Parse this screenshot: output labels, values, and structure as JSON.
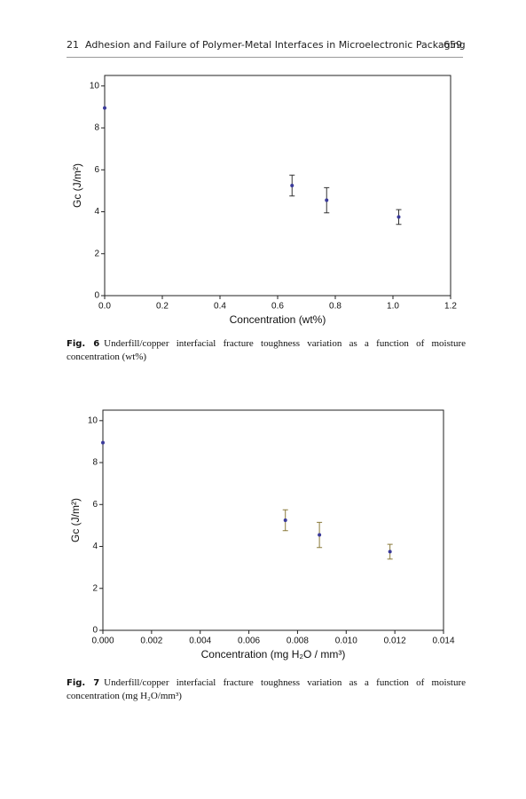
{
  "header": {
    "chapter": "21",
    "title": "Adhesion and Failure of Polymer-Metal Interfaces in Microelectronic Packaging",
    "page": "659"
  },
  "chart_data": [
    {
      "type": "scatter",
      "x_label": "Concentration (wt%)",
      "y_label": "Gc (J/m²)",
      "x": [
        0,
        0.65,
        0.77,
        1.02
      ],
      "values": [
        8.95,
        5.25,
        4.55,
        3.75
      ],
      "errors": [
        null,
        0.5,
        0.6,
        0.35
      ],
      "color": "#3a3a9a",
      "error_color": "#333333",
      "xlim": [
        0,
        1.2
      ],
      "ylim": [
        0,
        10.5
      ],
      "xticks": [
        {
          "value": 0,
          "label": "0.0"
        },
        0.2,
        0.4,
        0.6,
        0.8,
        {
          "value": 1,
          "label": "1.0"
        },
        1.2
      ],
      "yticks": [
        0,
        2,
        4,
        6,
        8,
        10
      ],
      "grid": false,
      "caption_label": "Fig. 6",
      "caption": "Underfill/copper interfacial fracture toughness variation as a function of moisture concentration (wt%)"
    },
    {
      "type": "scatter",
      "x_label": "Concentration (mg H₂O / mm³)",
      "y_label": "Gc (J/m²)",
      "x": [
        0,
        0.0075,
        0.0089,
        0.0118
      ],
      "values": [
        8.95,
        5.25,
        4.55,
        3.75
      ],
      "errors": [
        null,
        0.5,
        0.6,
        0.35
      ],
      "color": "#3a3a9a",
      "error_color": "#8a7a3a",
      "xlim": [
        0,
        0.014
      ],
      "ylim": [
        0,
        10.5
      ],
      "xticks": [
        {
          "value": 0,
          "label": "0.000"
        },
        {
          "value": 0.002,
          "label": "0.002"
        },
        {
          "value": 0.004,
          "label": "0.004"
        },
        {
          "value": 0.006,
          "label": "0.006"
        },
        {
          "value": 0.008,
          "label": "0.008"
        },
        {
          "value": 0.01,
          "label": "0.010"
        },
        {
          "value": 0.012,
          "label": "0.012"
        },
        {
          "value": 0.014,
          "label": "0.014"
        }
      ],
      "yticks": [
        0,
        2,
        4,
        6,
        8,
        10
      ],
      "grid": false,
      "caption_label": "Fig. 7",
      "caption": "Underfill/copper interfacial fracture toughness variation as a function of moisture concentration (mg H₂O/mm³)"
    }
  ]
}
